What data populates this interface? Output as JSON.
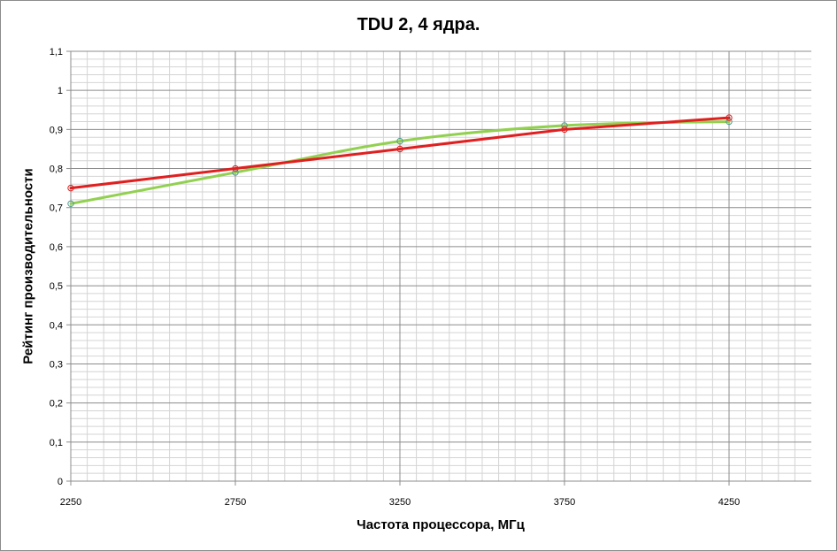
{
  "chart_data": {
    "type": "line",
    "title": "TDU 2, 4 ядра.",
    "xlabel": "Частота процессора, МГц",
    "ylabel": "Рейтинг производительности",
    "xlim": [
      2250,
      4500
    ],
    "ylim": [
      0,
      1.1
    ],
    "x_ticks": [
      "2250",
      "2750",
      "3250",
      "3750",
      "4250"
    ],
    "y_ticks": [
      "0",
      "0,1",
      "0,2",
      "0,3",
      "0,4",
      "0,5",
      "0,6",
      "0,7",
      "0,8",
      "0,9",
      "1",
      "1,1"
    ],
    "grid": true,
    "legend": "none",
    "series": [
      {
        "color": "#e02020",
        "x": [
          2250,
          2750,
          3250,
          3750,
          4250
        ],
        "y": [
          0.75,
          0.8,
          0.85,
          0.9,
          0.93
        ]
      },
      {
        "color": "#92d050",
        "x": [
          2250,
          2750,
          3250,
          3750,
          4250
        ],
        "y": [
          0.71,
          0.79,
          0.87,
          0.91,
          0.92
        ]
      }
    ]
  }
}
